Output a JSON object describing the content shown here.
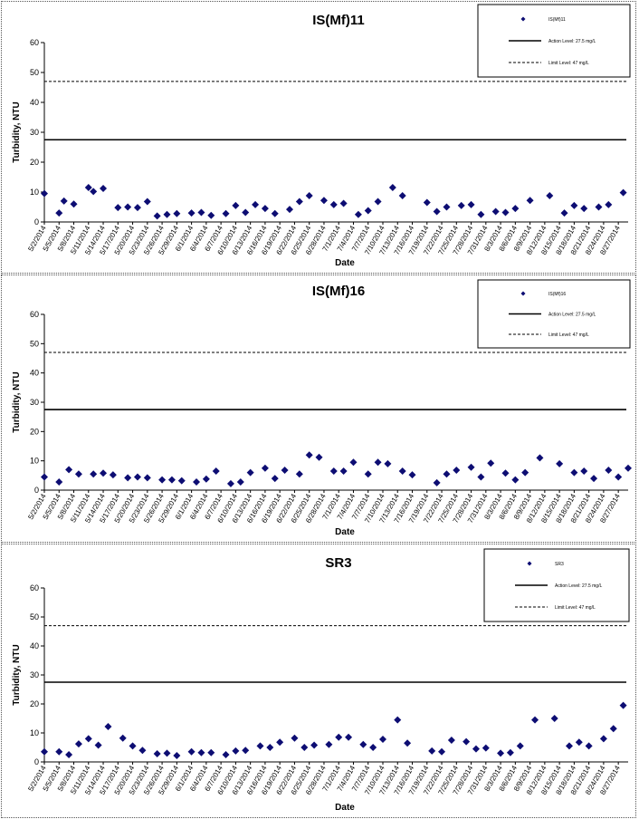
{
  "colors": {
    "marker": "#0d0d73",
    "line": "#000000",
    "background": "#ffffff"
  },
  "chart_data": [
    {
      "type": "scatter",
      "title": "IS(Mf)11",
      "xlabel": "Date",
      "ylabel": "Turbidity, NTU",
      "ylim": [
        0,
        60
      ],
      "yticks": [
        "0",
        "10",
        "20",
        "30",
        "40",
        "50",
        "60"
      ],
      "xtick_labels": [
        "5/2/2014",
        "5/5/2014",
        "5/8/2014",
        "5/11/2014",
        "5/14/2014",
        "5/17/2014",
        "5/20/2014",
        "5/23/2014",
        "5/26/2014",
        "5/29/2014",
        "6/1/2014",
        "6/4/2014",
        "6/7/2014",
        "6/10/2014",
        "6/13/2014",
        "6/16/2014",
        "6/19/2014",
        "6/22/2014",
        "6/25/2014",
        "6/28/2014",
        "7/1/2014",
        "7/4/2014",
        "7/7/2014",
        "7/10/2014",
        "7/13/2014",
        "7/16/2014",
        "7/19/2014",
        "7/22/2014",
        "7/25/2014",
        "7/28/2014",
        "7/31/2014",
        "8/3/2014",
        "8/6/2014",
        "8/9/2014",
        "8/12/2014",
        "8/15/2014",
        "8/18/2014",
        "8/21/2014",
        "8/24/2014",
        "8/27/2014"
      ],
      "legend": {
        "position": "top-right",
        "entries": [
          "IS(Mf)11",
          "Action Level: 27.5 mg/L",
          "Limit Level: 47 mg/L"
        ]
      },
      "reference_lines": [
        {
          "name": "Action Level: 27.5 mg/L",
          "value": 27.5,
          "style": "solid"
        },
        {
          "name": "Limit Level: 47 mg/L",
          "value": 47,
          "style": "dashed"
        }
      ],
      "x_range": [
        "2014-05-02",
        "2014-08-29"
      ],
      "series": [
        {
          "name": "IS(Mf)11",
          "points": [
            [
              "2014-05-02",
              9.5
            ],
            [
              "2014-05-05",
              3.0
            ],
            [
              "2014-05-06",
              7.0
            ],
            [
              "2014-05-08",
              6.0
            ],
            [
              "2014-05-11",
              11.5
            ],
            [
              "2014-05-12",
              10.2
            ],
            [
              "2014-05-14",
              11.2
            ],
            [
              "2014-05-17",
              4.8
            ],
            [
              "2014-05-19",
              5.0
            ],
            [
              "2014-05-21",
              4.8
            ],
            [
              "2014-05-23",
              6.8
            ],
            [
              "2014-05-25",
              2.0
            ],
            [
              "2014-05-27",
              2.5
            ],
            [
              "2014-05-29",
              2.8
            ],
            [
              "2014-06-01",
              3.0
            ],
            [
              "2014-06-03",
              3.2
            ],
            [
              "2014-06-05",
              2.2
            ],
            [
              "2014-06-08",
              2.8
            ],
            [
              "2014-06-10",
              5.5
            ],
            [
              "2014-06-12",
              3.2
            ],
            [
              "2014-06-14",
              5.8
            ],
            [
              "2014-06-16",
              4.5
            ],
            [
              "2014-06-18",
              2.8
            ],
            [
              "2014-06-21",
              4.2
            ],
            [
              "2014-06-23",
              6.8
            ],
            [
              "2014-06-25",
              8.8
            ],
            [
              "2014-06-28",
              7.2
            ],
            [
              "2014-06-30",
              5.8
            ],
            [
              "2014-07-02",
              6.2
            ],
            [
              "2014-07-05",
              2.5
            ],
            [
              "2014-07-07",
              3.8
            ],
            [
              "2014-07-09",
              6.8
            ],
            [
              "2014-07-12",
              11.5
            ],
            [
              "2014-07-14",
              8.8
            ],
            [
              "2014-07-19",
              6.5
            ],
            [
              "2014-07-21",
              3.5
            ],
            [
              "2014-07-23",
              5.0
            ],
            [
              "2014-07-26",
              5.5
            ],
            [
              "2014-07-28",
              5.8
            ],
            [
              "2014-07-30",
              2.5
            ],
            [
              "2014-08-02",
              3.5
            ],
            [
              "2014-08-04",
              3.2
            ],
            [
              "2014-08-06",
              4.5
            ],
            [
              "2014-08-09",
              7.2
            ],
            [
              "2014-08-13",
              8.8
            ],
            [
              "2014-08-16",
              3.0
            ],
            [
              "2014-08-18",
              5.5
            ],
            [
              "2014-08-20",
              4.5
            ],
            [
              "2014-08-23",
              5.0
            ],
            [
              "2014-08-25",
              5.8
            ],
            [
              "2014-08-28",
              9.8
            ]
          ]
        }
      ]
    },
    {
      "type": "scatter",
      "title": "IS(Mf)16",
      "xlabel": "Date",
      "ylabel": "Turbidity, NTU",
      "ylim": [
        0,
        60
      ],
      "yticks": [
        "0",
        "10",
        "20",
        "30",
        "40",
        "50",
        "60"
      ],
      "xtick_labels": [
        "5/2/2014",
        "5/5/2014",
        "5/8/2014",
        "5/11/2014",
        "5/14/2014",
        "5/17/2014",
        "5/20/2014",
        "5/23/2014",
        "5/26/2014",
        "5/29/2014",
        "6/1/2014",
        "6/4/2014",
        "6/7/2014",
        "6/10/2014",
        "6/13/2014",
        "6/16/2014",
        "6/19/2014",
        "6/22/2014",
        "6/25/2014",
        "6/28/2014",
        "7/1/2014",
        "7/4/2014",
        "7/7/2014",
        "7/10/2014",
        "7/13/2014",
        "7/16/2014",
        "7/19/2014",
        "7/22/2014",
        "7/25/2014",
        "7/28/2014",
        "7/31/2014",
        "8/3/2014",
        "8/6/2014",
        "8/9/2014",
        "8/12/2014",
        "8/15/2014",
        "8/18/2014",
        "8/21/2014",
        "8/24/2014",
        "8/27/2014"
      ],
      "legend": {
        "position": "top-right",
        "entries": [
          "IS(Mf)16",
          "Action Level: 27.5 mg/L",
          "Limit Level: 47 mg/L"
        ]
      },
      "reference_lines": [
        {
          "name": "Action Level: 27.5 mg/L",
          "value": 27.5,
          "style": "solid"
        },
        {
          "name": "Limit Level: 47 mg/L",
          "value": 47,
          "style": "dashed"
        }
      ],
      "x_range": [
        "2014-05-02",
        "2014-08-29"
      ],
      "series": [
        {
          "name": "IS(Mf)16",
          "points": [
            [
              "2014-05-02",
              4.5
            ],
            [
              "2014-05-05",
              2.8
            ],
            [
              "2014-05-07",
              7.0
            ],
            [
              "2014-05-09",
              5.5
            ],
            [
              "2014-05-12",
              5.5
            ],
            [
              "2014-05-14",
              5.8
            ],
            [
              "2014-05-16",
              5.2
            ],
            [
              "2014-05-19",
              4.2
            ],
            [
              "2014-05-21",
              4.5
            ],
            [
              "2014-05-23",
              4.2
            ],
            [
              "2014-05-26",
              3.5
            ],
            [
              "2014-05-28",
              3.5
            ],
            [
              "2014-05-30",
              3.2
            ],
            [
              "2014-06-02",
              2.8
            ],
            [
              "2014-06-04",
              3.8
            ],
            [
              "2014-06-06",
              6.5
            ],
            [
              "2014-06-09",
              2.2
            ],
            [
              "2014-06-11",
              2.8
            ],
            [
              "2014-06-13",
              6.0
            ],
            [
              "2014-06-16",
              7.5
            ],
            [
              "2014-06-18",
              4.0
            ],
            [
              "2014-06-20",
              6.8
            ],
            [
              "2014-06-23",
              5.5
            ],
            [
              "2014-06-25",
              12.0
            ],
            [
              "2014-06-27",
              11.2
            ],
            [
              "2014-06-30",
              6.5
            ],
            [
              "2014-07-02",
              6.5
            ],
            [
              "2014-07-04",
              9.5
            ],
            [
              "2014-07-07",
              5.5
            ],
            [
              "2014-07-09",
              9.5
            ],
            [
              "2014-07-11",
              9.0
            ],
            [
              "2014-07-14",
              6.5
            ],
            [
              "2014-07-16",
              5.2
            ],
            [
              "2014-07-21",
              2.5
            ],
            [
              "2014-07-23",
              5.5
            ],
            [
              "2014-07-25",
              6.8
            ],
            [
              "2014-07-28",
              7.8
            ],
            [
              "2014-07-30",
              4.5
            ],
            [
              "2014-08-01",
              9.2
            ],
            [
              "2014-08-04",
              5.8
            ],
            [
              "2014-08-06",
              3.5
            ],
            [
              "2014-08-08",
              6.0
            ],
            [
              "2014-08-11",
              11.0
            ],
            [
              "2014-08-15",
              9.0
            ],
            [
              "2014-08-18",
              6.0
            ],
            [
              "2014-08-20",
              6.5
            ],
            [
              "2014-08-22",
              4.0
            ],
            [
              "2014-08-25",
              6.8
            ],
            [
              "2014-08-27",
              4.5
            ],
            [
              "2014-08-29",
              7.5
            ]
          ]
        }
      ]
    },
    {
      "type": "scatter",
      "title": "SR3",
      "xlabel": "Date",
      "ylabel": "Turbidity, NTU",
      "ylim": [
        0,
        60
      ],
      "yticks": [
        "0",
        "10",
        "20",
        "30",
        "40",
        "50",
        "60"
      ],
      "xtick_labels": [
        "5/2/2014",
        "5/5/2014",
        "5/8/2014",
        "5/11/2014",
        "5/14/2014",
        "5/17/2014",
        "5/20/2014",
        "5/23/2014",
        "5/26/2014",
        "5/29/2014",
        "6/1/2014",
        "6/4/2014",
        "6/7/2014",
        "6/10/2014",
        "6/13/2014",
        "6/16/2014",
        "6/19/2014",
        "6/22/2014",
        "6/25/2014",
        "6/28/2014",
        "7/1/2014",
        "7/4/2014",
        "7/7/2014",
        "7/10/2014",
        "7/13/2014",
        "7/16/2014",
        "7/19/2014",
        "7/22/2014",
        "7/25/2014",
        "7/28/2014",
        "7/31/2014",
        "8/3/2014",
        "8/6/2014",
        "8/9/2014",
        "8/12/2014",
        "8/15/2014",
        "8/18/2014",
        "8/21/2014",
        "8/24/2014",
        "8/27/2014"
      ],
      "legend": {
        "position": "top-right",
        "entries": [
          "SR3",
          "Action Level: 27.5 mg/L",
          "Limit Level: 47 mg/L"
        ]
      },
      "reference_lines": [
        {
          "name": "Action Level: 27.5 mg/L",
          "value": 27.5,
          "style": "solid"
        },
        {
          "name": "Limit Level: 47 mg/L",
          "value": 47,
          "style": "dashed"
        }
      ],
      "x_range": [
        "2014-05-02",
        "2014-08-29"
      ],
      "series": [
        {
          "name": "SR3",
          "points": [
            [
              "2014-05-02",
              3.5
            ],
            [
              "2014-05-05",
              3.5
            ],
            [
              "2014-05-07",
              2.5
            ],
            [
              "2014-05-09",
              6.2
            ],
            [
              "2014-05-11",
              8.0
            ],
            [
              "2014-05-13",
              5.8
            ],
            [
              "2014-05-15",
              12.2
            ],
            [
              "2014-05-18",
              8.2
            ],
            [
              "2014-05-20",
              5.5
            ],
            [
              "2014-05-22",
              4.0
            ],
            [
              "2014-05-25",
              2.8
            ],
            [
              "2014-05-27",
              3.0
            ],
            [
              "2014-05-29",
              2.2
            ],
            [
              "2014-06-01",
              3.5
            ],
            [
              "2014-06-03",
              3.2
            ],
            [
              "2014-06-05",
              3.2
            ],
            [
              "2014-06-08",
              2.5
            ],
            [
              "2014-06-10",
              3.8
            ],
            [
              "2014-06-12",
              4.0
            ],
            [
              "2014-06-15",
              5.5
            ],
            [
              "2014-06-17",
              5.0
            ],
            [
              "2014-06-19",
              6.8
            ],
            [
              "2014-06-22",
              8.2
            ],
            [
              "2014-06-24",
              5.0
            ],
            [
              "2014-06-26",
              5.8
            ],
            [
              "2014-06-29",
              6.0
            ],
            [
              "2014-07-01",
              8.5
            ],
            [
              "2014-07-03",
              8.5
            ],
            [
              "2014-07-06",
              6.0
            ],
            [
              "2014-07-08",
              5.0
            ],
            [
              "2014-07-10",
              7.8
            ],
            [
              "2014-07-13",
              14.5
            ],
            [
              "2014-07-15",
              6.5
            ],
            [
              "2014-07-20",
              3.8
            ],
            [
              "2014-07-22",
              3.5
            ],
            [
              "2014-07-24",
              7.5
            ],
            [
              "2014-07-27",
              7.0
            ],
            [
              "2014-07-29",
              4.5
            ],
            [
              "2014-07-31",
              4.8
            ],
            [
              "2014-08-03",
              3.0
            ],
            [
              "2014-08-05",
              3.2
            ],
            [
              "2014-08-07",
              5.5
            ],
            [
              "2014-08-10",
              14.5
            ],
            [
              "2014-08-14",
              15.0
            ],
            [
              "2014-08-17",
              5.5
            ],
            [
              "2014-08-19",
              6.8
            ],
            [
              "2014-08-21",
              5.5
            ],
            [
              "2014-08-24",
              8.0
            ],
            [
              "2014-08-26",
              11.5
            ],
            [
              "2014-08-28",
              19.5
            ]
          ]
        }
      ]
    }
  ]
}
